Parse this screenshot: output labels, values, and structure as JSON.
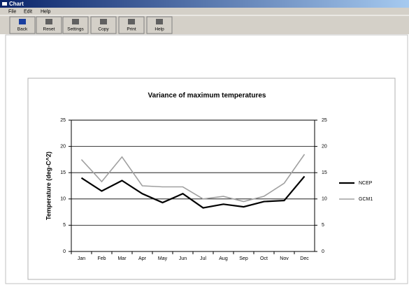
{
  "window": {
    "title": "Chart"
  },
  "menu": [
    "File",
    "Edit",
    "Help"
  ],
  "toolbar": [
    "Back",
    "Reset",
    "Settings",
    "Copy",
    "Print",
    "Help"
  ],
  "chart_data": {
    "type": "line",
    "title": "Variance of maximum temperatures",
    "y_label": "Temperature (deg-C^2)",
    "categories": [
      "Jan",
      "Feb",
      "Mar",
      "Apr",
      "May",
      "Jun",
      "Jul",
      "Aug",
      "Sep",
      "Oct",
      "Nov",
      "Dec"
    ],
    "series": [
      {
        "name": "NCEP",
        "color": "#000000",
        "values": [
          14,
          11.5,
          13.5,
          11,
          9.3,
          11,
          8.3,
          9,
          8.5,
          9.5,
          9.7,
          14.3
        ]
      },
      {
        "name": "GCM1",
        "color": "#a0a0a0",
        "values": [
          17.5,
          13.3,
          18,
          12.5,
          12.3,
          12.3,
          10,
          10.5,
          9.5,
          10.5,
          13,
          18.5
        ]
      }
    ],
    "ylim": [
      0,
      25
    ],
    "yticks": [
      0,
      5,
      10,
      15,
      20,
      25
    ],
    "y2lim": [
      0,
      25
    ],
    "y2ticks": [
      0,
      5,
      10,
      15,
      20,
      25
    ],
    "grid": true,
    "legend": "right"
  }
}
